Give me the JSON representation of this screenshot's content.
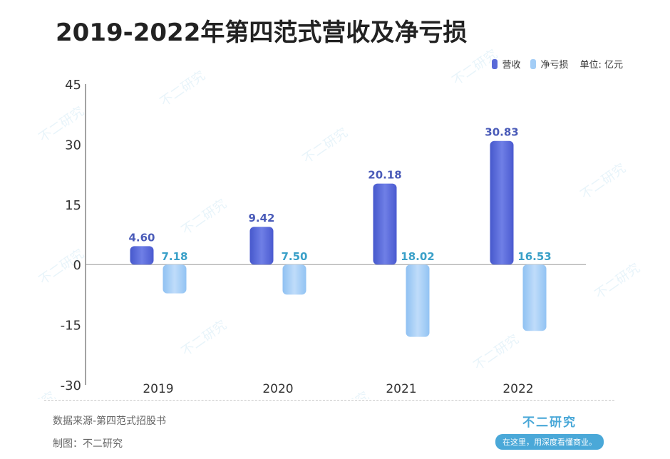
{
  "title": "2019-2022年第四范式营收及净亏损",
  "legend": {
    "items": [
      {
        "label": "营收",
        "color": "#5a6ad8"
      },
      {
        "label": "净亏损",
        "color": "#a3cdf6"
      }
    ],
    "unit": "单位: 亿元"
  },
  "chart_data": {
    "type": "bar",
    "title": "2019-2022年第四范式营收及净亏损",
    "categories": [
      "2019",
      "2020",
      "2021",
      "2022"
    ],
    "series": [
      {
        "name": "营收",
        "values": [
          4.6,
          9.42,
          20.18,
          30.83
        ],
        "labels": [
          "4.60",
          "9.42",
          "20.18",
          "30.83"
        ],
        "color": "#5a6ad8",
        "label_color": "#4a5bb8"
      },
      {
        "name": "净亏损",
        "values": [
          -7.18,
          -7.5,
          -18.02,
          -16.53
        ],
        "labels": [
          "7.18",
          "7.50",
          "18.02",
          "16.53"
        ],
        "color": "#a3cdf6",
        "label_color": "#3aa0c8"
      }
    ],
    "yticks": [
      "45",
      "30",
      "15",
      "0",
      "-15",
      "-30"
    ],
    "ylim": [
      -30,
      45
    ],
    "xlabel": "",
    "ylabel": "",
    "grid": false,
    "legend_position": "top-right"
  },
  "footer": {
    "source": "数据来源-第四范式招股书",
    "maker": "制图：不二研究"
  },
  "brand": {
    "name": "不二研究",
    "slogan": "在这里，用深度看懂商业。"
  },
  "watermark_text": "不二研究"
}
